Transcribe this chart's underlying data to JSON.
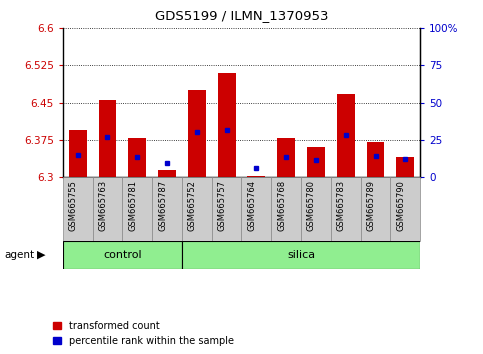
{
  "title": "GDS5199 / ILMN_1370953",
  "samples": [
    "GSM665755",
    "GSM665763",
    "GSM665781",
    "GSM665787",
    "GSM665752",
    "GSM665757",
    "GSM665764",
    "GSM665768",
    "GSM665780",
    "GSM665783",
    "GSM665789",
    "GSM665790"
  ],
  "groups": [
    "control",
    "control",
    "control",
    "control",
    "silica",
    "silica",
    "silica",
    "silica",
    "silica",
    "silica",
    "silica",
    "silica"
  ],
  "bar_base": 6.3,
  "bar_tops": [
    6.395,
    6.455,
    6.378,
    6.315,
    6.475,
    6.51,
    6.302,
    6.378,
    6.36,
    6.468,
    6.37,
    6.34
  ],
  "blue_y": [
    6.345,
    6.38,
    6.34,
    6.328,
    6.39,
    6.395,
    6.318,
    6.34,
    6.335,
    6.385,
    6.343,
    6.337
  ],
  "ylim": [
    6.3,
    6.6
  ],
  "yticks_left": [
    6.3,
    6.375,
    6.45,
    6.525,
    6.6
  ],
  "yticks_right": [
    0,
    25,
    50,
    75,
    100
  ],
  "bar_color": "#cc0000",
  "blue_color": "#0000cc",
  "tick_label_color_left": "#cc0000",
  "tick_label_color_right": "#0000cc",
  "green_bg": "#90ee90",
  "grey_bg": "#cccccc",
  "agent_label": "agent",
  "control_label": "control",
  "silica_label": "silica",
  "legend_transformed": "transformed count",
  "legend_percentile": "percentile rank within the sample",
  "bar_width": 0.6,
  "n_control": 4,
  "n_silica": 8
}
